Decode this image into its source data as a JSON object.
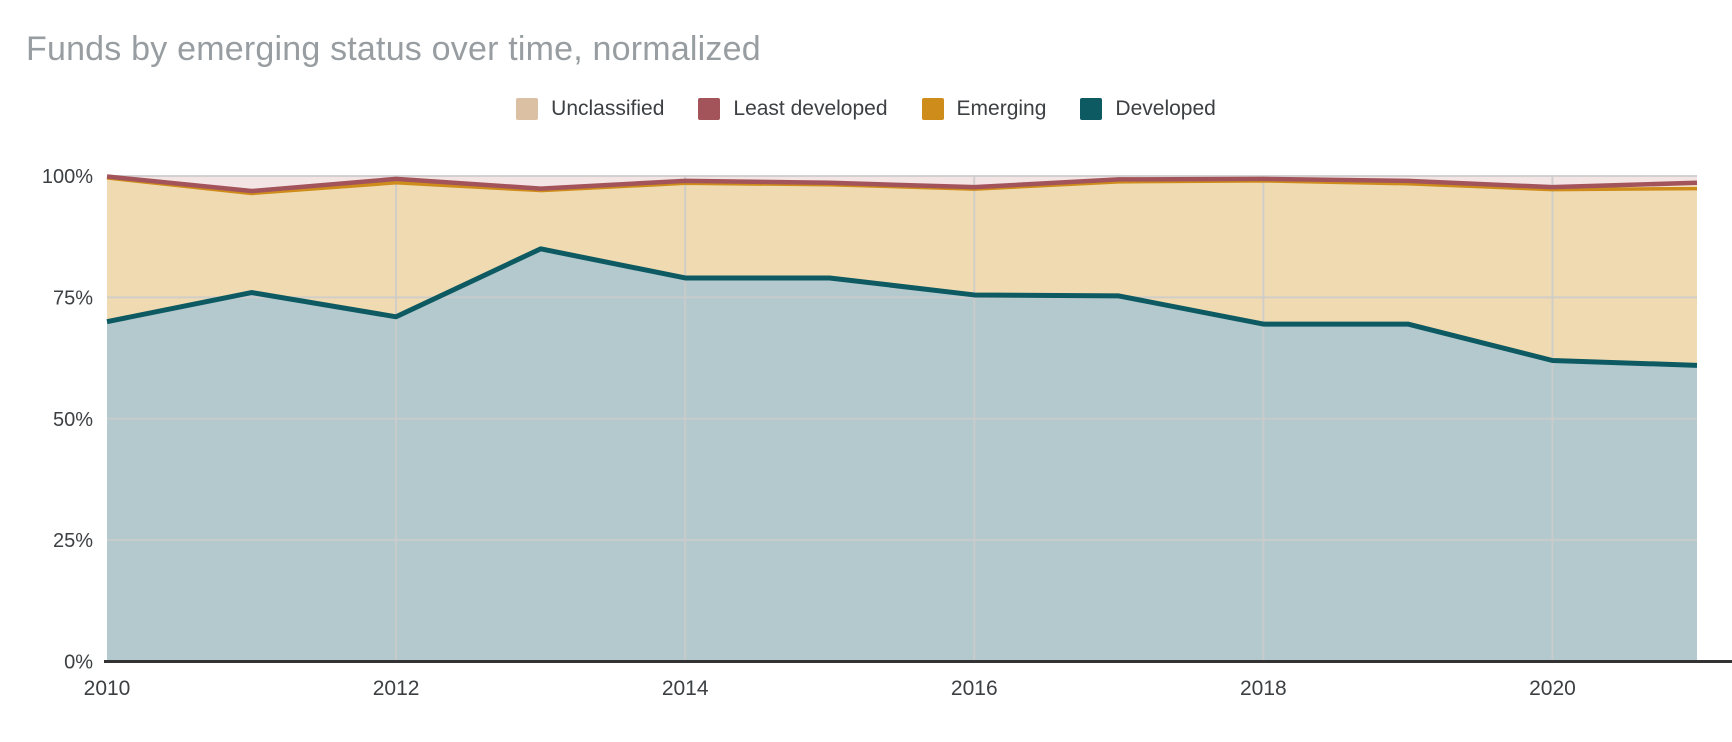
{
  "title": "Funds by emerging status over time, normalized",
  "colors": {
    "title_text": "#979DA0",
    "legend_text": "#3C4043",
    "tick_label": "#3C4043",
    "grid_line": "#CCCCCC",
    "axis_line": "#333333",
    "background": "#FFFFFF"
  },
  "legend": [
    {
      "label": "Unclassified",
      "color": "#DCC0A3"
    },
    {
      "label": "Least developed",
      "color": "#A3545A"
    },
    {
      "label": "Emerging",
      "color": "#CE8C1A"
    },
    {
      "label": "Developed",
      "color": "#0D5A62"
    }
  ],
  "axis": {
    "y_tick_labels": [
      "0%",
      "25%",
      "50%",
      "75%",
      "100%"
    ],
    "y_tick_values": [
      0,
      25,
      50,
      75,
      100
    ],
    "x_tick_labels": [
      "2010",
      "2012",
      "2014",
      "2016",
      "2018",
      "2020"
    ],
    "x_tick_indices": [
      0,
      2,
      4,
      6,
      8,
      10
    ]
  },
  "chart_data": {
    "type": "area",
    "stacked": true,
    "normalized": true,
    "title": "Funds by emerging status over time, normalized",
    "xlabel": "",
    "ylabel": "",
    "ylim": [
      0,
      100
    ],
    "grid": true,
    "legend_position": "top",
    "x": [
      2010,
      2011,
      2012,
      2013,
      2014,
      2015,
      2016,
      2017,
      2018,
      2019,
      2020,
      2021
    ],
    "series": [
      {
        "name": "Developed",
        "stroke": "#0D5A62",
        "fill": "#B4C9CD",
        "values": [
          70.0,
          76.0,
          71.0,
          85.0,
          79.0,
          79.0,
          75.5,
          75.3,
          69.5,
          69.5,
          62.0,
          61.0
        ]
      },
      {
        "name": "Unclassified",
        "stroke": "#DCC0A3",
        "fill": "#F0DAB1",
        "values": [
          29.6,
          20.4,
          27.6,
          12.0,
          19.5,
          19.2,
          21.8,
          23.5,
          29.5,
          28.9,
          35.2,
          36.4
        ]
      },
      {
        "name": "Emerging",
        "stroke": "#CE8C1A",
        "fill": "#F5E4C7",
        "values": [
          0.3,
          0.5,
          0.8,
          0.4,
          0.5,
          0.4,
          0.4,
          0.5,
          0.4,
          0.6,
          0.5,
          1.2
        ]
      },
      {
        "name": "Least developed",
        "stroke": "#A3545A",
        "fill": "#F3E5E4",
        "values": [
          0.1,
          3.1,
          0.6,
          2.6,
          1.0,
          1.4,
          2.3,
          0.7,
          0.6,
          1.0,
          2.3,
          1.4
        ]
      }
    ],
    "boundary_strokes": [
      {
        "after_series": "Developed",
        "color": "#0D5A62",
        "width": 5
      },
      {
        "after_series": "Unclassified",
        "color": "#CE8C1A",
        "width": 3.5
      },
      {
        "after_series": "Emerging",
        "color": "#A3545A",
        "width": 4.5
      }
    ]
  }
}
